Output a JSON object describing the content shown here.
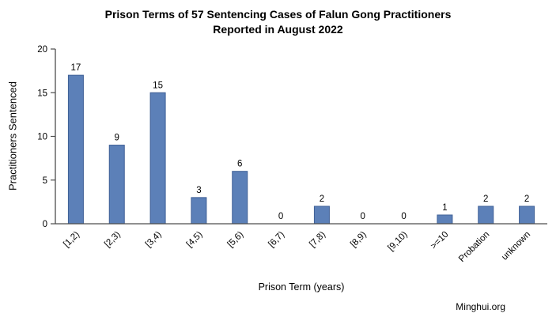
{
  "chart_data": {
    "type": "bar",
    "title": "Prison Terms of 57 Sentencing Cases of Falun Gong Practitioners Reported in August 2022",
    "title_lines": [
      "Prison Terms of 57 Sentencing Cases of Falun Gong Practitioners",
      "Reported in August 2022"
    ],
    "categories": [
      "[1,2)",
      "[2,3)",
      "[3,4)",
      "[4,5)",
      "[5,6)",
      "[6,7)",
      "[7,8)",
      "[8,9)",
      "[9,10)",
      ">=10",
      "Probation",
      "unknown"
    ],
    "values": [
      17,
      9,
      15,
      3,
      6,
      0,
      2,
      0,
      0,
      1,
      2,
      2
    ],
    "xlabel": "Prison Term (years)",
    "ylabel": "Practitioners Sentenced",
    "ylim": [
      0,
      20
    ],
    "yticks": [
      0,
      5,
      10,
      15,
      20
    ],
    "grid": "off",
    "legend": "none",
    "value_labels": "above-bars",
    "category_label_rotation_deg": -45,
    "bar_fill_color": "#5c80b8",
    "bar_border_color": "#3e5f96",
    "axis_color": "#4d4d4d"
  },
  "watermark": "Minghui.org"
}
